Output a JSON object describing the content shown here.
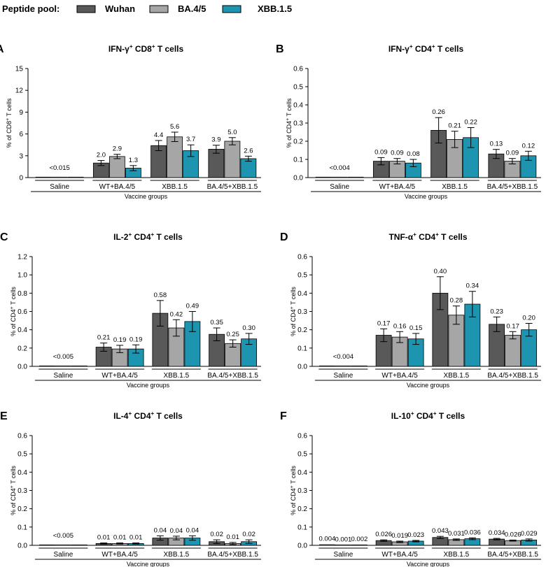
{
  "legend": {
    "title": "Peptide pool:",
    "entries": [
      {
        "name": "Wuhan",
        "color": "#595959"
      },
      {
        "name": "BA.4/5",
        "color": "#a6a6a6"
      },
      {
        "name": "XBB.1.5",
        "color": "#1d95b0"
      }
    ]
  },
  "chart_data": [
    {
      "type": "bar",
      "panel": "A",
      "title": "IFN-γ+ CD8+ T cells",
      "title_parts": {
        "c1": "IFN-γ",
        "s1": "+",
        "c2": " CD8",
        "s2": "+",
        "c3": " T cells"
      },
      "ylabel": "% of CD8+ T cells",
      "ylabel_parts": {
        "pre": "% of CD8",
        "sup": "+",
        "post": " T cells"
      },
      "xlabel": "Vaccine groups",
      "categories": [
        "Saline",
        "WT+BA.4/5",
        "XBB.1.5",
        "BA.4/5+XBB.1.5"
      ],
      "ylim": [
        0,
        15
      ],
      "yticks": [
        "0",
        "3",
        "6",
        "9",
        "12",
        "15"
      ],
      "series": [
        {
          "name": "Wuhan",
          "values": [
            0.01,
            2.0,
            4.4,
            3.9
          ],
          "errors": [
            0,
            0.35,
            0.7,
            0.55
          ]
        },
        {
          "name": "BA.4/5",
          "values": [
            0.01,
            2.9,
            5.6,
            5.0
          ],
          "errors": [
            0,
            0.3,
            0.65,
            0.5
          ]
        },
        {
          "name": "XBB.1.5",
          "values": [
            0.01,
            1.3,
            3.7,
            2.6
          ],
          "errors": [
            0,
            0.35,
            0.8,
            0.35
          ]
        }
      ],
      "data_labels": [
        [
          "<0.015"
        ],
        [
          "2.0",
          "2.9",
          "1.3"
        ],
        [
          "4.4",
          "5.6",
          "3.7"
        ],
        [
          "3.9",
          "5.0",
          "2.6"
        ]
      ]
    },
    {
      "type": "bar",
      "panel": "B",
      "title": "IFN-γ+ CD4+ T cells",
      "title_parts": {
        "c1": "IFN-γ",
        "s1": "+",
        "c2": " CD4",
        "s2": "+",
        "c3": " T cells"
      },
      "ylabel": "% of CD4+ T cells",
      "ylabel_parts": {
        "pre": "% of CD4",
        "sup": "+",
        "post": " T cells"
      },
      "xlabel": "Vaccine groups",
      "categories": [
        "Saline",
        "WT+BA.4/5",
        "XBB.1.5",
        "BA.4/5+XBB.1.5"
      ],
      "ylim": [
        0,
        0.6
      ],
      "yticks": [
        "0.0",
        "0.1",
        "0.2",
        "0.3",
        "0.4",
        "0.5",
        "0.6"
      ],
      "series": [
        {
          "name": "Wuhan",
          "values": [
            0.002,
            0.09,
            0.26,
            0.13
          ],
          "errors": [
            0,
            0.02,
            0.07,
            0.025
          ]
        },
        {
          "name": "BA.4/5",
          "values": [
            0.002,
            0.09,
            0.21,
            0.09
          ],
          "errors": [
            0,
            0.015,
            0.045,
            0.015
          ]
        },
        {
          "name": "XBB.1.5",
          "values": [
            0.002,
            0.08,
            0.22,
            0.12
          ],
          "errors": [
            0,
            0.02,
            0.055,
            0.025
          ]
        }
      ],
      "data_labels": [
        [
          "<0.004"
        ],
        [
          "0.09",
          "0.09",
          "0.08"
        ],
        [
          "0.26",
          "0.21",
          "0.22"
        ],
        [
          "0.13",
          "0.09",
          "0.12"
        ]
      ]
    },
    {
      "type": "bar",
      "panel": "C",
      "title": "IL-2+ CD4+ T cells",
      "title_parts": {
        "c1": "IL-2",
        "s1": "+",
        "c2": " CD4",
        "s2": "+",
        "c3": " T cells"
      },
      "ylabel": "% of CD4+ T cells",
      "ylabel_parts": {
        "pre": "% of CD4",
        "sup": "+",
        "post": " T cells"
      },
      "xlabel": "Vaccine groups",
      "categories": [
        "Saline",
        "WT+BA.4/5",
        "XBB.1.5",
        "BA.4/5+XBB.1.5"
      ],
      "ylim": [
        0,
        1.2
      ],
      "yticks": [
        "0.0",
        "0.2",
        "0.4",
        "0.6",
        "0.8",
        "1.0",
        "1.2"
      ],
      "series": [
        {
          "name": "Wuhan",
          "values": [
            0.003,
            0.21,
            0.58,
            0.35
          ],
          "errors": [
            0,
            0.045,
            0.14,
            0.07
          ]
        },
        {
          "name": "BA.4/5",
          "values": [
            0.003,
            0.19,
            0.42,
            0.25
          ],
          "errors": [
            0,
            0.04,
            0.09,
            0.04
          ]
        },
        {
          "name": "XBB.1.5",
          "values": [
            0.003,
            0.19,
            0.49,
            0.3
          ],
          "errors": [
            0,
            0.045,
            0.11,
            0.06
          ]
        }
      ],
      "data_labels": [
        [
          "<0.005"
        ],
        [
          "0.21",
          "0.19",
          "0.19"
        ],
        [
          "0.58",
          "0.42",
          "0.49"
        ],
        [
          "0.35",
          "0.25",
          "0.30"
        ]
      ]
    },
    {
      "type": "bar",
      "panel": "D",
      "title": "TNF-α+ CD4+ T cells",
      "title_parts": {
        "c1": "TNF-α",
        "s1": "+",
        "c2": " CD4",
        "s2": "+",
        "c3": " T cells"
      },
      "ylabel": "% of CD4+ T cells",
      "ylabel_parts": {
        "pre": "% of CD4",
        "sup": "+",
        "post": " T cells"
      },
      "xlabel": "Vaccine groups",
      "categories": [
        "Saline",
        "WT+BA.4/5",
        "XBB.1.5",
        "BA.4/5+XBB.1.5"
      ],
      "ylim": [
        0,
        0.6
      ],
      "yticks": [
        "0.0",
        "0.1",
        "0.2",
        "0.3",
        "0.4",
        "0.5",
        "0.6"
      ],
      "series": [
        {
          "name": "Wuhan",
          "values": [
            0.002,
            0.17,
            0.4,
            0.23
          ],
          "errors": [
            0,
            0.035,
            0.09,
            0.04
          ]
        },
        {
          "name": "BA.4/5",
          "values": [
            0.002,
            0.16,
            0.28,
            0.17
          ],
          "errors": [
            0,
            0.03,
            0.05,
            0.02
          ]
        },
        {
          "name": "XBB.1.5",
          "values": [
            0.002,
            0.15,
            0.34,
            0.2
          ],
          "errors": [
            0,
            0.03,
            0.07,
            0.035
          ]
        }
      ],
      "data_labels": [
        [
          "<0.004"
        ],
        [
          "0.17",
          "0.16",
          "0.15"
        ],
        [
          "0.40",
          "0.28",
          "0.34"
        ],
        [
          "0.23",
          "0.17",
          "0.20"
        ]
      ]
    },
    {
      "type": "bar",
      "panel": "E",
      "title": "IL-4+ CD4+ T cells",
      "title_parts": {
        "c1": "IL-4",
        "s1": "+",
        "c2": " CD4",
        "s2": "+",
        "c3": " T cells"
      },
      "ylabel": "% of CD4+ T cells",
      "ylabel_parts": {
        "pre": "% of CD4",
        "sup": "+",
        "post": " T cells"
      },
      "xlabel": "Vaccine groups",
      "categories": [
        "Saline",
        "WT+BA.4/5",
        "XBB.1.5",
        "BA.4/5+XBB.1.5"
      ],
      "ylim": [
        0,
        0.6
      ],
      "yticks": [
        "0.0",
        "0.1",
        "0.2",
        "0.3",
        "0.4",
        "0.5",
        "0.6"
      ],
      "series": [
        {
          "name": "Wuhan",
          "values": [
            0.002,
            0.01,
            0.04,
            0.02
          ],
          "errors": [
            0,
            0.003,
            0.012,
            0.01
          ]
        },
        {
          "name": "BA.4/5",
          "values": [
            0.002,
            0.01,
            0.04,
            0.01
          ],
          "errors": [
            0,
            0.003,
            0.01,
            0.006
          ]
        },
        {
          "name": "XBB.1.5",
          "values": [
            0.002,
            0.01,
            0.04,
            0.02
          ],
          "errors": [
            0,
            0.003,
            0.012,
            0.01
          ]
        }
      ],
      "data_labels": [
        [
          "<0.005"
        ],
        [
          "0.01",
          "0.01",
          "0.01"
        ],
        [
          "0.04",
          "0.04",
          "0.04"
        ],
        [
          "0.02",
          "0.01",
          "0.02"
        ]
      ]
    },
    {
      "type": "bar",
      "panel": "F",
      "title": "IL-10+ CD4+ T cells",
      "title_parts": {
        "c1": "IL-10",
        "s1": "+",
        "c2": " CD4",
        "s2": "+",
        "c3": " T cells"
      },
      "ylabel": "% of CD4+ T cells",
      "ylabel_parts": {
        "pre": "% of CD4",
        "sup": "+",
        "post": " T cells"
      },
      "xlabel": "Vaccine groups",
      "categories": [
        "Saline",
        "WT+BA.4/5",
        "XBB.1.5",
        "BA.4/5+XBB.1.5"
      ],
      "ylim": [
        0,
        0.6
      ],
      "yticks": [
        "0.0",
        "0.1",
        "0.2",
        "0.3",
        "0.4",
        "0.5",
        "0.6"
      ],
      "series": [
        {
          "name": "Wuhan",
          "values": [
            0.004,
            0.026,
            0.043,
            0.034
          ],
          "errors": [
            0.001,
            0.004,
            0.006,
            0.004
          ]
        },
        {
          "name": "BA.4/5",
          "values": [
            0.001,
            0.019,
            0.031,
            0.026
          ],
          "errors": [
            0.001,
            0.004,
            0.004,
            0.003
          ]
        },
        {
          "name": "XBB.1.5",
          "values": [
            0.002,
            0.023,
            0.036,
            0.029
          ],
          "errors": [
            0.001,
            0.004,
            0.005,
            0.006
          ]
        }
      ],
      "data_labels": [
        [
          "0.004",
          "0.001",
          "0.002"
        ],
        [
          "0.026",
          "0.019",
          "0.023"
        ],
        [
          "0.043",
          "0.031",
          "0.036"
        ],
        [
          "0.034",
          "0.026",
          "0.029"
        ]
      ]
    }
  ]
}
